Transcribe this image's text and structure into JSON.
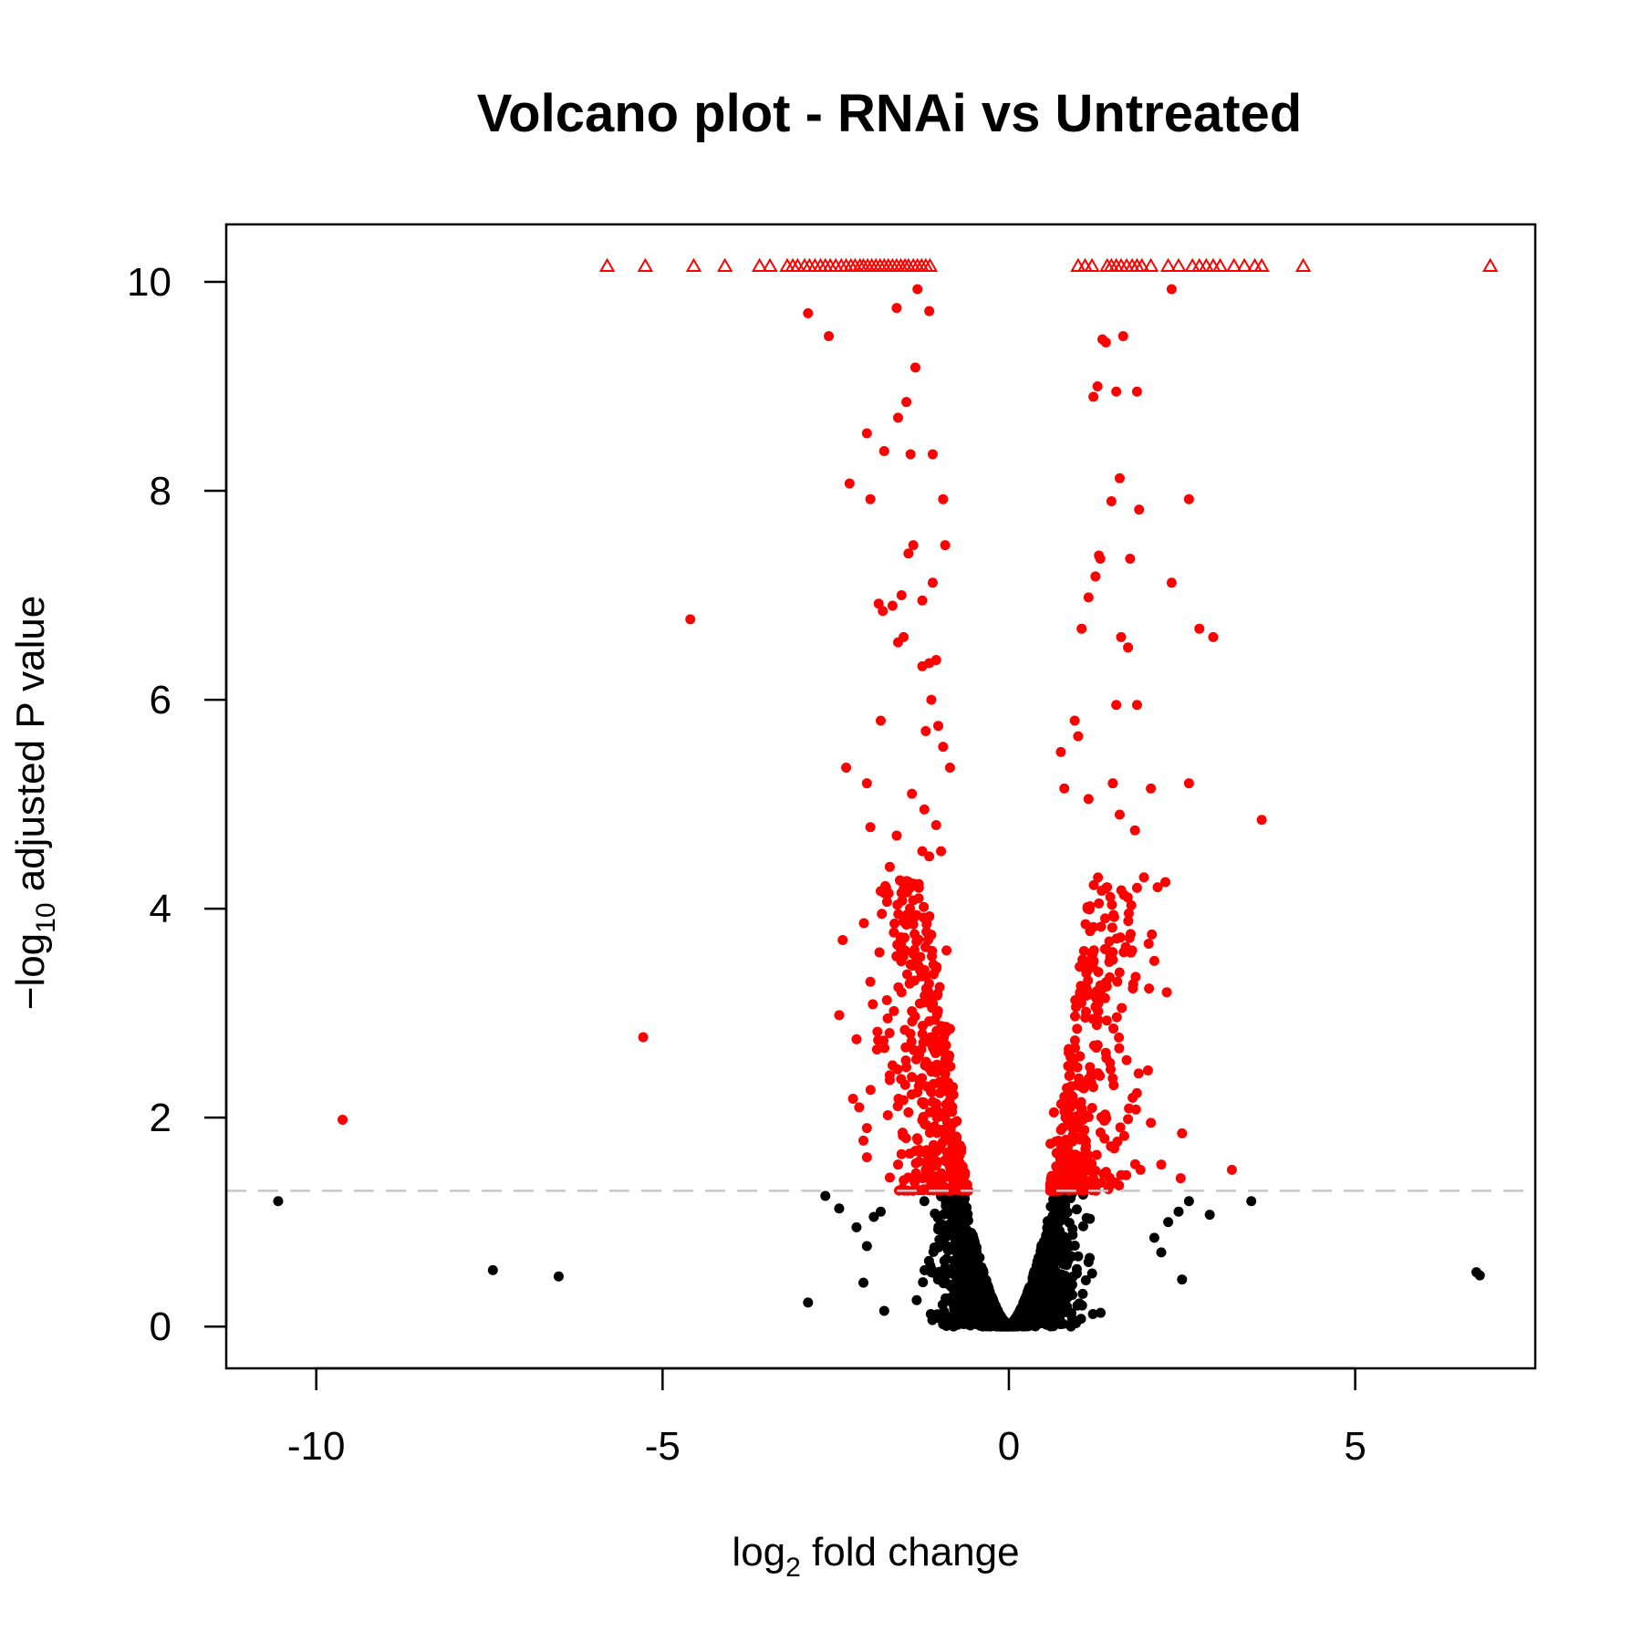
{
  "chart_data": {
    "type": "scatter",
    "title": "Volcano plot - RNAi vs Untreated",
    "xlabel": {
      "prefix": "log",
      "subscript": "2",
      "suffix": " fold change"
    },
    "ylabel": {
      "prefix": "−log",
      "subscript": "10",
      "suffix": " adjusted P value"
    },
    "xlim": [
      -11.3,
      7.6
    ],
    "ylim": [
      -0.4,
      10.55
    ],
    "x_ticks": [
      -10,
      -5,
      0,
      5
    ],
    "x_tick_labels": [
      "-10",
      "-5",
      "0",
      "5"
    ],
    "y_ticks": [
      0,
      2,
      4,
      6,
      8,
      10
    ],
    "y_tick_labels": [
      "0",
      "2",
      "4",
      "6",
      "8",
      "10"
    ],
    "threshold_y": 1.3,
    "capped_y": 10.15,
    "grid": false,
    "legend": "none",
    "colors": {
      "significant": "#ff0000",
      "not_significant": "#000000",
      "threshold_line": "#c8c8c8",
      "frame": "#000000"
    },
    "series": [
      {
        "marker": "triangle-open",
        "color": "#ff0000",
        "x": [
          -5.8,
          -5.25,
          -4.55,
          -4.1,
          -3.6,
          -3.45,
          -3.2,
          -3.12,
          -3.05,
          -2.95,
          -2.88,
          -2.8,
          -2.72,
          -2.65,
          -2.58,
          -2.5,
          -2.42,
          -2.35,
          -2.28,
          -2.22,
          -2.15,
          -2.1,
          -2.04,
          -1.98,
          -1.92,
          -1.86,
          -1.8,
          -1.74,
          -1.68,
          -1.62,
          -1.56,
          -1.5,
          -1.45,
          -1.38,
          -1.32,
          -1.26,
          -1.2,
          -1.14,
          1.0,
          1.1,
          1.2,
          1.42,
          1.48,
          1.55,
          1.62,
          1.7,
          1.78,
          1.85,
          1.92,
          2.05,
          2.3,
          2.45,
          2.65,
          2.75,
          2.85,
          2.95,
          3.05,
          3.25,
          3.4,
          3.55,
          3.65,
          4.25,
          6.95
        ],
        "y": [
          10.15,
          10.15,
          10.15,
          10.15,
          10.15,
          10.15,
          10.15,
          10.15,
          10.15,
          10.15,
          10.15,
          10.15,
          10.15,
          10.15,
          10.15,
          10.15,
          10.15,
          10.15,
          10.15,
          10.15,
          10.15,
          10.15,
          10.15,
          10.15,
          10.15,
          10.15,
          10.15,
          10.15,
          10.15,
          10.15,
          10.15,
          10.15,
          10.15,
          10.15,
          10.15,
          10.15,
          10.15,
          10.15,
          10.15,
          10.15,
          10.15,
          10.15,
          10.15,
          10.15,
          10.15,
          10.15,
          10.15,
          10.15,
          10.15,
          10.15,
          10.15,
          10.15,
          10.15,
          10.15,
          10.15,
          10.15,
          10.15,
          10.15,
          10.15,
          10.15,
          10.15,
          10.15,
          10.15
        ]
      },
      {
        "marker": "dot",
        "color": "#ff0000",
        "x": [
          -9.62,
          -5.28,
          -4.6,
          -2.9,
          -2.6,
          -1.62,
          -1.15,
          -1.32,
          -1.35,
          -1.48,
          -1.6,
          -2.05,
          -1.8,
          -1.42,
          -1.1,
          -2.3,
          -2.0,
          -0.95,
          -1.38,
          -1.45,
          -0.92,
          -1.1,
          -1.55,
          -1.68,
          -1.82,
          -1.88,
          -1.25,
          -1.6,
          -1.52,
          -1.05,
          -1.15,
          -1.25,
          -1.12,
          -1.02,
          -1.85,
          -1.2,
          -0.95,
          -0.85,
          -2.35,
          -2.05,
          -1.4,
          -1.22,
          -1.05,
          -2.0,
          -1.62,
          -1.25,
          -1.15,
          -0.98,
          -1.72,
          -1.8,
          -1.3,
          -1.45,
          -1.38,
          -1.12,
          -0.9,
          -2.0,
          -2.4,
          -1.5,
          -1.3,
          -1.2,
          -1.0,
          -2.2,
          -1.55,
          -1.75,
          -0.85,
          -2.45,
          -1.68,
          -1.3,
          -1.1,
          -2.25,
          -1.45,
          -2.05,
          -2.05,
          -1.6,
          -1.2,
          -1.0,
          -0.8,
          -2.1,
          -1.55,
          2.35,
          1.65,
          1.35,
          1.4,
          1.28,
          1.55,
          1.22,
          1.85,
          1.88,
          1.6,
          1.48,
          1.32,
          2.6,
          1.75,
          1.3,
          1.25,
          1.72,
          1.05,
          1.15,
          1.62,
          1.55,
          2.75,
          2.95,
          1.85,
          2.35,
          0.95,
          1.0,
          0.75,
          0.8,
          1.15,
          1.5,
          1.6,
          1.82,
          2.05,
          2.6,
          3.65,
          1.85,
          1.95,
          1.3,
          1.52,
          1.78,
          2.1,
          2.28,
          3.22,
          2.5,
          2.05,
          1.7,
          1.4,
          1.2,
          0.9,
          0.8,
          0.65,
          0.6,
          1.38,
          1.62,
          1.9,
          2.2,
          2.48,
          0.95,
          1.05,
          0.85
        ],
        "y": [
          1.98,
          2.77,
          6.77,
          9.7,
          9.48,
          9.75,
          9.72,
          9.93,
          9.18,
          8.85,
          8.7,
          8.55,
          8.38,
          8.35,
          8.35,
          8.07,
          7.92,
          7.92,
          7.48,
          7.4,
          7.48,
          7.12,
          7.0,
          6.9,
          6.85,
          6.92,
          6.95,
          6.55,
          6.6,
          6.38,
          6.35,
          6.32,
          6.0,
          5.75,
          5.8,
          5.7,
          5.55,
          5.35,
          5.35,
          5.2,
          5.1,
          4.95,
          4.8,
          4.78,
          4.7,
          4.55,
          4.5,
          4.55,
          4.4,
          4.15,
          4.2,
          3.9,
          3.85,
          3.75,
          3.6,
          3.3,
          3.7,
          3.6,
          3.45,
          3.35,
          3.25,
          2.75,
          3.2,
          2.95,
          2.85,
          2.98,
          2.5,
          2.3,
          2.15,
          2.18,
          2.05,
          1.9,
          1.62,
          1.55,
          1.5,
          1.42,
          1.38,
          1.78,
          1.65,
          9.93,
          9.48,
          9.45,
          9.42,
          9.0,
          8.95,
          8.9,
          8.95,
          7.82,
          8.12,
          7.9,
          7.35,
          7.92,
          7.35,
          7.38,
          7.18,
          6.5,
          6.68,
          6.98,
          6.6,
          5.95,
          6.68,
          6.6,
          5.95,
          7.12,
          5.8,
          5.65,
          5.5,
          5.15,
          5.05,
          5.2,
          4.9,
          4.75,
          5.15,
          5.2,
          4.85,
          4.2,
          4.3,
          4.05,
          3.92,
          3.6,
          3.5,
          3.2,
          1.5,
          1.85,
          1.95,
          2.55,
          2.62,
          2.4,
          2.3,
          2.2,
          2.05,
          1.75,
          1.8,
          1.45,
          1.5,
          1.55,
          1.42,
          1.38,
          1.45,
          1.4
        ]
      }
    ],
    "density_clouds": [
      {
        "name": "",
        "color": "#ff0000",
        "marker": "dot",
        "left_branch_x": [
          -2.0,
          -0.25
        ],
        "right_branch_x": [
          0.25,
          2.3
        ],
        "y_range": [
          1.3,
          4.3
        ],
        "approx_count": 700
      },
      {
        "name": "",
        "color": "#000000",
        "marker": "dot",
        "x_range": [
          -2.2,
          2.4
        ],
        "y_range": [
          0.0,
          1.3
        ],
        "approx_count": 2600
      }
    ],
    "black_outliers": {
      "x": [
        -10.55,
        -7.45,
        -6.5,
        -2.9,
        -2.65,
        -2.45,
        -2.1,
        -2.05,
        -1.95,
        -1.8,
        -1.85,
        2.3,
        2.45,
        2.5,
        2.6,
        2.9,
        3.5,
        6.75,
        6.8,
        2.2,
        2.1,
        -2.2
      ],
      "y": [
        1.2,
        0.54,
        0.48,
        0.23,
        1.25,
        1.13,
        0.42,
        0.77,
        1.05,
        0.15,
        1.1,
        1.0,
        1.1,
        0.45,
        1.2,
        1.07,
        1.2,
        0.52,
        0.49,
        0.71,
        0.85,
        0.95
      ]
    }
  }
}
